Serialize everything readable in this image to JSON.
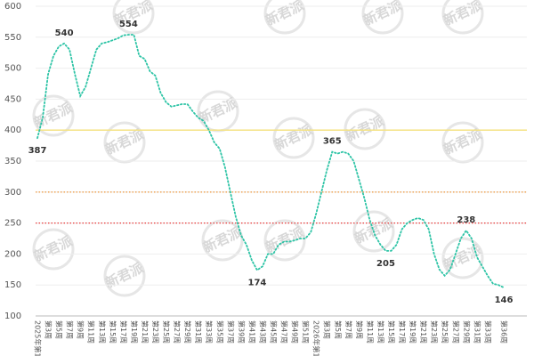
{
  "chart_data": {
    "type": "line",
    "categories": [
      "2025年第1周",
      null,
      "第3周",
      null,
      "第5周",
      null,
      "第7周",
      null,
      "第9周",
      null,
      "第11周",
      null,
      "第13周",
      null,
      "第15周",
      null,
      "第17周",
      null,
      "第19周",
      null,
      "第21周",
      null,
      "第23周",
      null,
      "第25周",
      null,
      "第27周",
      null,
      "第29周",
      null,
      "第31周",
      null,
      "第33周",
      null,
      "第35周",
      null,
      "第37周",
      null,
      "第39周",
      null,
      "第41周",
      null,
      "第43周",
      null,
      "第45周",
      null,
      "第47周",
      null,
      "第49周",
      null,
      "第51周",
      null,
      "2026年第1周",
      null,
      "第3周",
      null,
      "第5周",
      null,
      "第7周",
      null,
      "第9周",
      null,
      "第11周",
      null,
      "第13周",
      null,
      "第15周",
      null,
      "第17周",
      null,
      "第19周",
      null,
      "第21周",
      null,
      "第23周",
      null,
      "第25周",
      null,
      "第27周",
      null,
      "第29周",
      null,
      "第31周",
      null,
      "第33周",
      null,
      null,
      "第36周"
    ],
    "values": [
      387,
      420,
      490,
      520,
      535,
      540,
      530,
      490,
      455,
      470,
      500,
      530,
      540,
      542,
      545,
      548,
      553,
      554,
      554,
      520,
      515,
      495,
      488,
      460,
      445,
      438,
      440,
      442,
      442,
      430,
      420,
      415,
      400,
      380,
      370,
      340,
      300,
      260,
      230,
      215,
      190,
      174,
      180,
      200,
      200,
      215,
      220,
      220,
      222,
      225,
      225,
      235,
      265,
      300,
      335,
      365,
      362,
      365,
      362,
      350,
      320,
      290,
      255,
      230,
      215,
      205,
      205,
      215,
      240,
      250,
      255,
      258,
      255,
      240,
      200,
      175,
      165,
      175,
      200,
      225,
      238,
      225,
      195,
      180,
      165,
      152,
      150,
      146
    ],
    "value_labels": [
      "387",
      null,
      null,
      null,
      null,
      "540",
      null,
      null,
      null,
      null,
      null,
      null,
      null,
      null,
      null,
      null,
      null,
      "554",
      null,
      null,
      null,
      null,
      null,
      null,
      null,
      null,
      null,
      null,
      null,
      null,
      null,
      null,
      null,
      null,
      null,
      null,
      null,
      null,
      null,
      null,
      null,
      "174",
      null,
      null,
      null,
      null,
      null,
      null,
      null,
      null,
      null,
      null,
      null,
      null,
      null,
      "365",
      null,
      null,
      null,
      null,
      null,
      null,
      null,
      null,
      null,
      "205",
      null,
      null,
      null,
      null,
      null,
      null,
      null,
      null,
      null,
      null,
      null,
      null,
      null,
      null,
      "238",
      null,
      null,
      null,
      null,
      null,
      null,
      "146"
    ],
    "color": "#2ec4a6",
    "ylim": [
      100,
      600
    ],
    "yticks": [
      100,
      150,
      200,
      250,
      300,
      350,
      400,
      450,
      500,
      550,
      600
    ],
    "grid": true,
    "reference_lines": [
      {
        "value": 400,
        "color": "#f5e27a",
        "style": "solid"
      },
      {
        "value": 300,
        "color": "#f0a04b",
        "style": "dotted"
      },
      {
        "value": 250,
        "color": "#e83b3b",
        "style": "dotted"
      }
    ],
    "watermark": "新君派"
  }
}
